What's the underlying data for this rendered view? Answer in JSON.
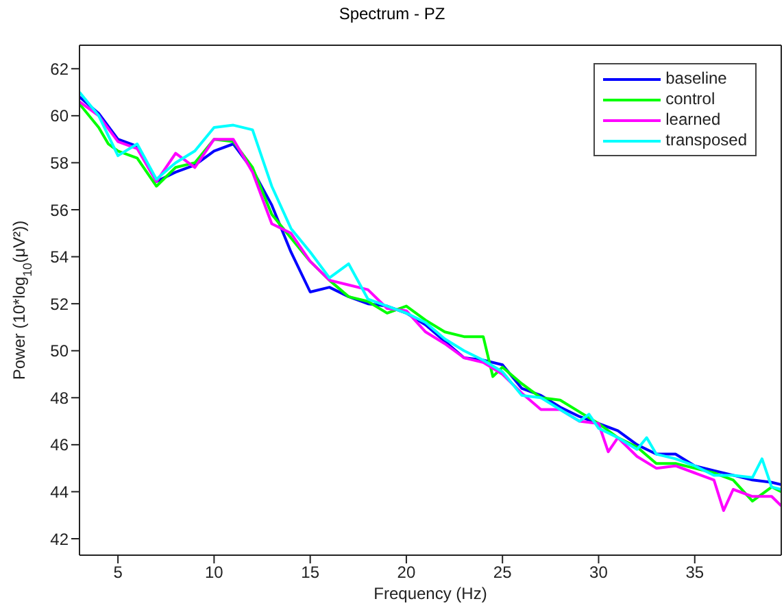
{
  "chart_data": {
    "type": "line",
    "title": "Spectrum - PZ",
    "xlabel": "Frequency (Hz)",
    "ylabel": "Power (10*log$_{10}$(μV²))",
    "xlim": [
      3,
      39.5
    ],
    "xticks": [
      5,
      10,
      15,
      20,
      25,
      30,
      35
    ],
    "ylim": [
      41.3,
      63
    ],
    "yticks": [
      42,
      44,
      46,
      48,
      50,
      52,
      54,
      56,
      58,
      60,
      62
    ],
    "legend": "top right",
    "marker": "none",
    "line_style": "solid",
    "series": [
      {
        "name": "baseline",
        "color": "#0000ff",
        "x": [
          3,
          4,
          5,
          6,
          7,
          8,
          9,
          10,
          11,
          12,
          13,
          14,
          15,
          16,
          17,
          18,
          19,
          20,
          21,
          22,
          23,
          24,
          25,
          26,
          27,
          28,
          29,
          30,
          31,
          32,
          33,
          34,
          35,
          36,
          37,
          38,
          39,
          39.5
        ],
        "values": [
          60.8,
          60.1,
          59.0,
          58.7,
          57.2,
          57.6,
          57.9,
          58.5,
          58.8,
          57.7,
          56.2,
          54.2,
          52.5,
          52.7,
          52.3,
          52.0,
          51.9,
          51.6,
          51.1,
          50.4,
          49.7,
          49.6,
          49.4,
          48.4,
          48.1,
          47.6,
          47.2,
          46.9,
          46.6,
          46.0,
          45.6,
          45.6,
          45.1,
          44.9,
          44.7,
          44.5,
          44.4,
          44.3
        ]
      },
      {
        "name": "control",
        "color": "#00ff00",
        "x": [
          3,
          4,
          4.5,
          5,
          6,
          7,
          8,
          9,
          10,
          11,
          12,
          13,
          14,
          15,
          16,
          17,
          18,
          19,
          20,
          21,
          22,
          23,
          24,
          24.5,
          25,
          26,
          27,
          28,
          29,
          30,
          31,
          32,
          33,
          34,
          35,
          36,
          37,
          38,
          39,
          39.5
        ],
        "values": [
          60.5,
          59.5,
          58.8,
          58.5,
          58.2,
          57.0,
          57.8,
          58.0,
          59.0,
          58.9,
          57.8,
          55.8,
          54.8,
          53.8,
          53.0,
          52.3,
          52.1,
          51.6,
          51.9,
          51.3,
          50.8,
          50.6,
          50.6,
          48.9,
          49.3,
          48.6,
          48.0,
          47.9,
          47.4,
          46.9,
          46.3,
          45.9,
          45.2,
          45.2,
          45.0,
          44.8,
          44.5,
          43.6,
          44.2,
          44.0
        ]
      },
      {
        "name": "learned",
        "color": "#ff00ff",
        "x": [
          3,
          4,
          5,
          6,
          7,
          8,
          9,
          10,
          11,
          12,
          13,
          14,
          15,
          16,
          17,
          18,
          19,
          20,
          21,
          22,
          23,
          24,
          25,
          26,
          27,
          28,
          29,
          30,
          30.5,
          31,
          32,
          33,
          34,
          35,
          36,
          36.5,
          37,
          38,
          39,
          39.5
        ],
        "values": [
          60.6,
          60.0,
          58.9,
          58.6,
          57.2,
          58.4,
          57.8,
          59.0,
          59.0,
          57.6,
          55.4,
          55.0,
          53.8,
          53.0,
          52.8,
          52.6,
          51.8,
          51.7,
          50.8,
          50.3,
          49.7,
          49.5,
          49.0,
          48.2,
          47.5,
          47.5,
          47.0,
          46.9,
          45.7,
          46.3,
          45.5,
          45.0,
          45.1,
          44.8,
          44.5,
          43.2,
          44.1,
          43.8,
          43.8,
          43.4
        ]
      },
      {
        "name": "transposed",
        "color": "#00ffff",
        "x": [
          3,
          4,
          5,
          6,
          7,
          8,
          9,
          10,
          11,
          12,
          13,
          14,
          15,
          16,
          17,
          18,
          19,
          20,
          21,
          22,
          23,
          24,
          25,
          26,
          27,
          28,
          29,
          29.5,
          30,
          31,
          32,
          32.5,
          33,
          34,
          35,
          36,
          37,
          38,
          38.5,
          39,
          39.5
        ],
        "values": [
          61.0,
          60.0,
          58.3,
          58.8,
          57.3,
          58.0,
          58.5,
          59.5,
          59.6,
          59.4,
          57.0,
          55.2,
          54.2,
          53.1,
          53.7,
          52.2,
          51.9,
          51.6,
          51.2,
          50.5,
          50.0,
          49.6,
          49.1,
          48.1,
          48.0,
          47.5,
          47.0,
          47.3,
          46.7,
          46.3,
          45.8,
          46.3,
          45.6,
          45.4,
          45.1,
          44.7,
          44.7,
          44.6,
          45.4,
          44.2,
          44.1
        ]
      }
    ]
  }
}
